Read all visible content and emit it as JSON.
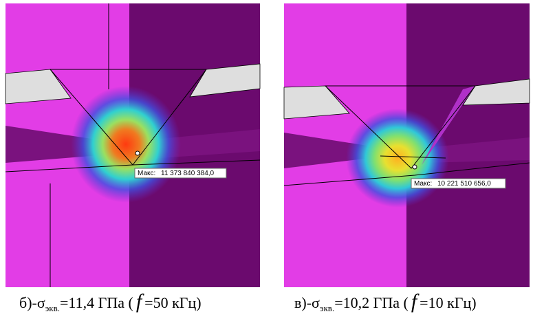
{
  "panels": [
    {
      "max_label": "Макс:",
      "max_value": "11 373 840 384,0",
      "caption": {
        "prefix": "б)-σ",
        "subscript": "экв.",
        "value": "=11,4 ГПа (",
        "symbol": "f",
        "suffix": "=50 кГц)"
      }
    },
    {
      "max_label": "Макс:",
      "max_value": "10 221 510 656,0",
      "caption": {
        "prefix": "в)-σ",
        "subscript": "экв.",
        "value": "=10,2 ГПа (",
        "symbol": "f",
        "suffix": "=10 кГц)"
      }
    }
  ]
}
